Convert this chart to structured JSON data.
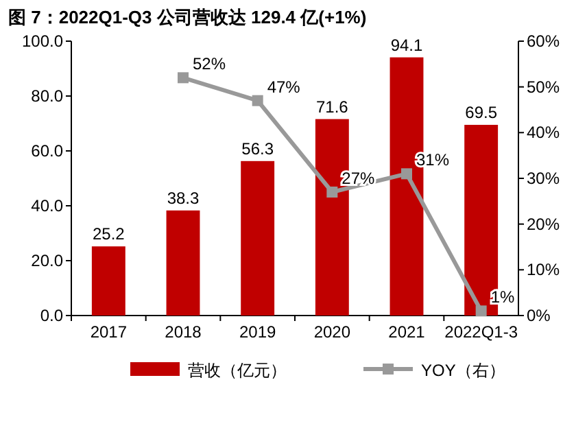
{
  "chart_data": {
    "type": "bar",
    "title": "图 7：2022Q1-Q3 公司营收达 129.4 亿(+1%)",
    "categories": [
      "2017",
      "2018",
      "2019",
      "2020",
      "2021",
      "2022Q1-3"
    ],
    "series": [
      {
        "name": "营收（亿元）",
        "color": "#c00000",
        "values": [
          25.2,
          38.3,
          56.3,
          71.6,
          94.1,
          69.5
        ],
        "value_labels": [
          "25.2",
          "38.3",
          "56.3",
          "71.6",
          "94.1",
          "69.5"
        ]
      },
      {
        "name": "YOY（右）",
        "type": "line",
        "axis": "y2",
        "color": "#999999",
        "marker": "square",
        "values": [
          null,
          52,
          47,
          27,
          31,
          1
        ],
        "value_labels": [
          null,
          "52%",
          "47%",
          "27%",
          "31%",
          "1%"
        ]
      }
    ],
    "ylim": [
      0,
      100
    ],
    "yticks": [
      {
        "value": 0,
        "label": "0.0"
      },
      {
        "value": 20,
        "label": "20.0"
      },
      {
        "value": 40,
        "label": "40.0"
      },
      {
        "value": 60,
        "label": "60.0"
      },
      {
        "value": 80,
        "label": "80.0"
      },
      {
        "value": 100,
        "label": "100.0"
      }
    ],
    "y2lim": [
      0,
      60
    ],
    "y2ticks": [
      {
        "value": 0,
        "label": "0%"
      },
      {
        "value": 10,
        "label": "10%"
      },
      {
        "value": 20,
        "label": "20%"
      },
      {
        "value": 30,
        "label": "30%"
      },
      {
        "value": 40,
        "label": "40%"
      },
      {
        "value": 50,
        "label": "50%"
      },
      {
        "value": 60,
        "label": "60%"
      }
    ],
    "legend": "bottom",
    "grid": false
  }
}
